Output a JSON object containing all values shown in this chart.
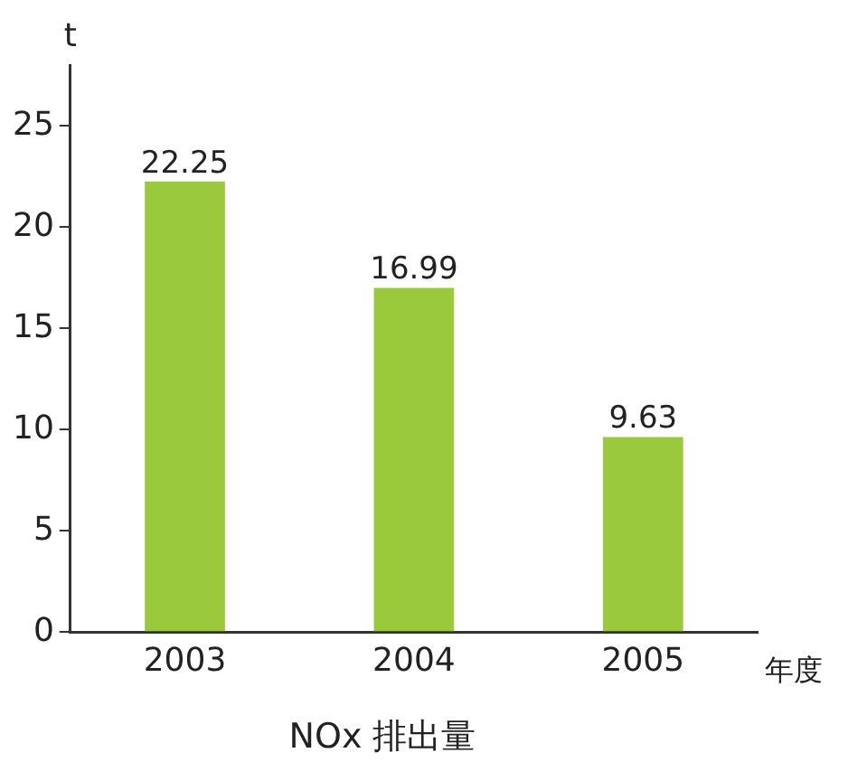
{
  "chart_data": {
    "type": "bar",
    "title": "NOx 排出量",
    "xlabel": "年度",
    "ylabel": "t",
    "categories": [
      "2003",
      "2004",
      "2005"
    ],
    "values": [
      22.25,
      16.99,
      9.63
    ],
    "color": "#9bc93c",
    "ylim": [
      0,
      28
    ],
    "yticks": [
      0,
      5,
      10,
      15,
      20,
      25
    ],
    "grid": false,
    "data_labels": true
  }
}
